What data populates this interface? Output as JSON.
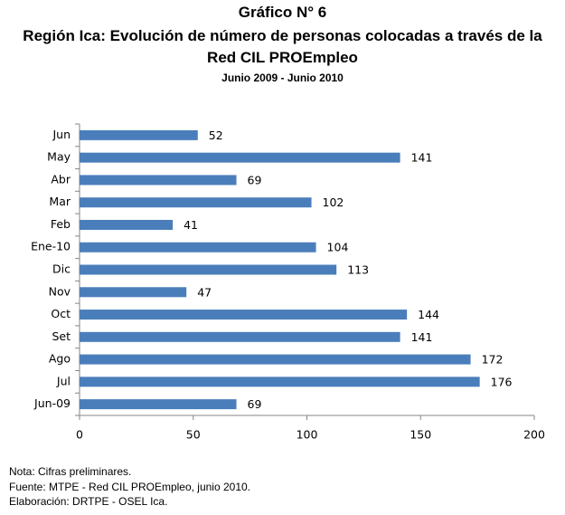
{
  "chart_data": {
    "type": "bar",
    "orientation": "horizontal",
    "title": "Gráfico N° 6",
    "subtitle": "Región Ica: Evolución de número de personas colocadas a través de la Red CIL PROEmpleo",
    "period": "Junio 2009 - Junio 2010",
    "categories": [
      "Jun",
      "May",
      "Abr",
      "Mar",
      "Feb",
      "Ene-10",
      "Dic",
      "Nov",
      "Oct",
      "Set",
      "Ago",
      "Jul",
      "Jun-09"
    ],
    "values": [
      52,
      141,
      69,
      102,
      41,
      104,
      113,
      47,
      144,
      141,
      172,
      176,
      69
    ],
    "color": "#4a7ebb",
    "xlim": [
      0,
      200
    ],
    "xticks": [
      0,
      50,
      100,
      150,
      200
    ],
    "grid": false,
    "notes": [
      "Nota: Cifras preliminares.",
      "Fuente: MTPE - Red CIL PROEmpleo, junio 2010.",
      "Elaboración: DRTPE - OSEL Ica."
    ]
  }
}
